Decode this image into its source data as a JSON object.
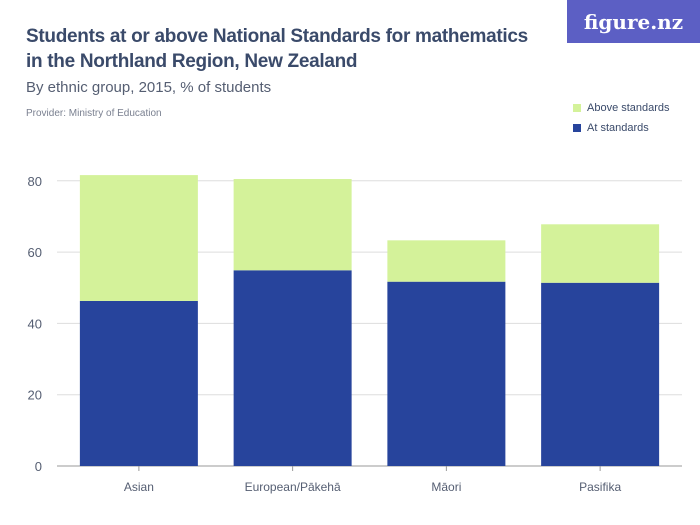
{
  "header": {
    "title": "Students at or above National Standards for mathematics in the Northland Region, New Zealand",
    "subtitle": "By ethnic group, 2015, % of students",
    "provider": "Provider: Ministry of Education",
    "logo": "figure.nz"
  },
  "colors": {
    "above": "#d4f29a",
    "at": "#27449c",
    "grid": "#dddddd",
    "logo_bg": "#5c5fc4"
  },
  "chart_data": {
    "type": "bar",
    "stacked": true,
    "title": "Students at or above National Standards for mathematics in the Northland Region, New Zealand",
    "subtitle": "By ethnic group, 2015, % of students",
    "categories": [
      "Asian",
      "European/Pākehā",
      "Māori",
      "Pasifika"
    ],
    "series": [
      {
        "name": "At standards",
        "values": [
          46.3,
          54.9,
          51.7,
          51.4
        ]
      },
      {
        "name": "Above standards",
        "values": [
          35.3,
          25.6,
          11.6,
          16.4
        ]
      }
    ],
    "ylim": [
      0,
      80
    ],
    "yticks": [
      0,
      20,
      40,
      60,
      80
    ],
    "grid": true,
    "legend_position": "top-right",
    "legend": [
      "Above standards",
      "At standards"
    ]
  }
}
